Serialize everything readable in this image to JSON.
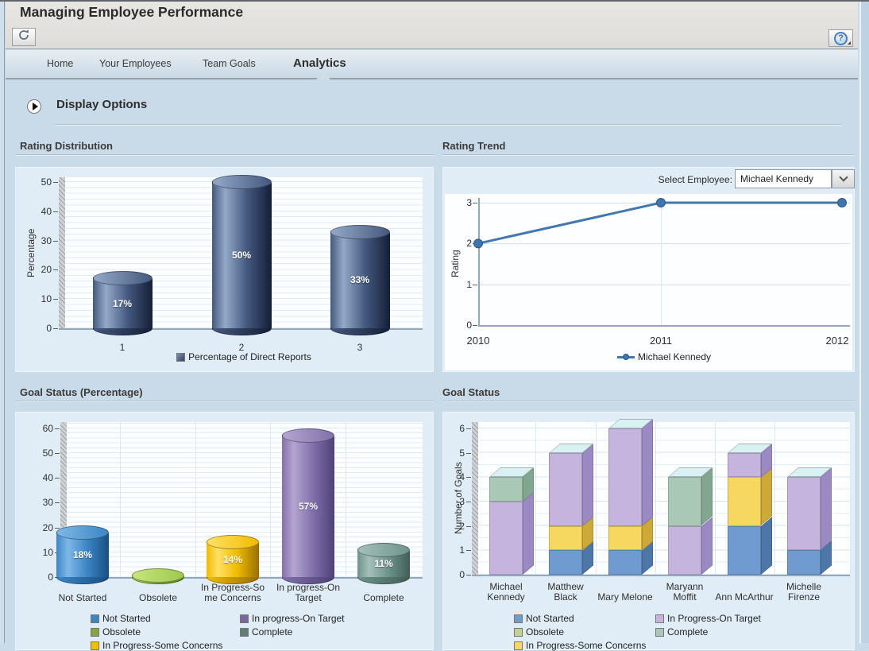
{
  "window": {
    "title": "Managing Employee Performance"
  },
  "toolbar": {
    "help_glyph": "?"
  },
  "tabs": [
    {
      "label": "Home",
      "active": false
    },
    {
      "label": "Your Employees",
      "active": false
    },
    {
      "label": "Team Goals",
      "active": false
    },
    {
      "label": "Analytics",
      "active": true
    }
  ],
  "display_options": {
    "label": "Display Options"
  },
  "sections": {
    "rating_distribution": {
      "title": "Rating Distribution"
    },
    "rating_trend": {
      "title": "Rating Trend",
      "select_employee_label": "Select Employee:",
      "selected_employee": "Michael Kennedy"
    },
    "goal_status_pct": {
      "title": "Goal Status (Percentage)"
    },
    "goal_status": {
      "title": "Goal Status"
    }
  },
  "chart_data": [
    {
      "id": "rating_distribution",
      "type": "bar",
      "style": "3d-cylinder",
      "title": "Rating Distribution",
      "categories": [
        "1",
        "2",
        "3"
      ],
      "values": [
        17,
        50,
        33
      ],
      "data_labels": [
        "17%",
        "50%",
        "33%"
      ],
      "ylabel": "Percentage",
      "ylim": [
        0,
        50
      ],
      "yticks": [
        0,
        10,
        20,
        30,
        40,
        50
      ],
      "grid": "horizontal-minor",
      "legend_position": "bottom-center",
      "bar_colors": [
        {
          "light": "#93a9c9",
          "base": "#45597e",
          "dark": "#141f38"
        },
        {
          "light": "#93a9c9",
          "base": "#45597e",
          "dark": "#141f38"
        },
        {
          "light": "#93a9c9",
          "base": "#45597e",
          "dark": "#141f38"
        }
      ],
      "legend": [
        {
          "label": "Percentage of Direct Reports",
          "color": "#33435f",
          "light": "#7e93b5"
        }
      ]
    },
    {
      "id": "rating_trend",
      "type": "line",
      "title": "Rating Trend",
      "x": [
        2010,
        2011,
        2012
      ],
      "xticks": [
        "2010",
        "2011",
        "2012"
      ],
      "series": [
        {
          "name": "Michael Kennedy",
          "values": [
            2,
            3,
            3
          ],
          "color": "#4377ae",
          "marker": "#3f74ad",
          "marker_edge": "#2a5a8c"
        }
      ],
      "ylabel": "Rating",
      "ylim": [
        0,
        3
      ],
      "yticks": [
        0,
        1,
        2,
        3
      ],
      "grid": "major",
      "legend_position": "bottom-center"
    },
    {
      "id": "goal_status_percentage",
      "type": "bar",
      "style": "3d-cylinder",
      "title": "Goal Status (Percentage)",
      "categories": [
        "Not Started",
        "Obsolete",
        "In Progress-So\nme Concerns",
        "In progress-On\nTarget",
        "Complete"
      ],
      "values": [
        18,
        0,
        14,
        57,
        11
      ],
      "data_labels": [
        "18%",
        "0%",
        "14%",
        "57%",
        "11%"
      ],
      "ylabel": "",
      "ylim": [
        0,
        60
      ],
      "yticks": [
        0,
        10,
        20,
        30,
        40,
        50,
        60
      ],
      "grid": "horizontal-minor",
      "bar_colors": [
        {
          "light": "#7fb8e6",
          "base": "#3c86c6",
          "dark": "#175084"
        },
        {
          "light": "#c8e47e",
          "base": "#9cc94c",
          "dark": "#5d7f22"
        },
        {
          "light": "#ffe066",
          "base": "#f0bc00",
          "dark": "#9a6f00"
        },
        {
          "light": "#b3a5d0",
          "base": "#8271ab",
          "dark": "#4f4178"
        },
        {
          "light": "#a3c0b8",
          "base": "#6f948c",
          "dark": "#415e56"
        }
      ],
      "legend": {
        "col1": [
          {
            "label": "Not Started",
            "color": "#3e86c0"
          },
          {
            "label": "Obsolete",
            "color": "#8aa43b"
          },
          {
            "label": "In Progress-Some Concerns",
            "color": "#f0c000"
          }
        ],
        "col2": [
          {
            "label": "In progress-On Target",
            "color": "#77689f"
          },
          {
            "label": "Complete",
            "color": "#5e7d75"
          }
        ]
      }
    },
    {
      "id": "goal_status",
      "type": "stacked-bar",
      "style": "3d-box",
      "title": "Goal Status",
      "categories": [
        "Michael\nKennedy",
        "Matthew\nBlack",
        "Mary Melone",
        "Maryann\nMoffit",
        "Ann McArthur",
        "Michelle\nFirenze"
      ],
      "series": [
        {
          "name": "Not Started",
          "color": "#6f9bd1",
          "side": "#4d77a8",
          "values": [
            0,
            1,
            1,
            0,
            2,
            1
          ]
        },
        {
          "name": "In Progress-Some Concerns",
          "color": "#f6d75f",
          "side": "#cda937",
          "values": [
            0,
            1,
            1,
            0,
            2,
            0
          ]
        },
        {
          "name": "In Progress-On Target",
          "color": "#c5b5de",
          "side": "#9a89c2",
          "values": [
            3,
            3,
            4,
            2,
            1,
            3
          ]
        },
        {
          "name": "Complete",
          "color": "#a9c9b6",
          "side": "#82a791",
          "values": [
            1,
            0,
            0,
            2,
            0,
            0
          ]
        }
      ],
      "top_face_color": "#d9f1f3",
      "ylabel": "Number of Goals",
      "ylim": [
        0,
        6
      ],
      "yticks": [
        0,
        1,
        2,
        3,
        4,
        5,
        6
      ],
      "grid": "horizontal-major",
      "legend": {
        "col1": [
          {
            "label": "Not Started",
            "color": "#6f9bd1"
          },
          {
            "label": "Obsolete",
            "color": "#c3d389"
          },
          {
            "label": "In Progress-Some Concerns",
            "color": "#f6d75f"
          }
        ],
        "col2": [
          {
            "label": "In Progress-On Target",
            "color": "#c5b5de"
          },
          {
            "label": "Complete",
            "color": "#a9c9b6"
          }
        ]
      }
    }
  ]
}
